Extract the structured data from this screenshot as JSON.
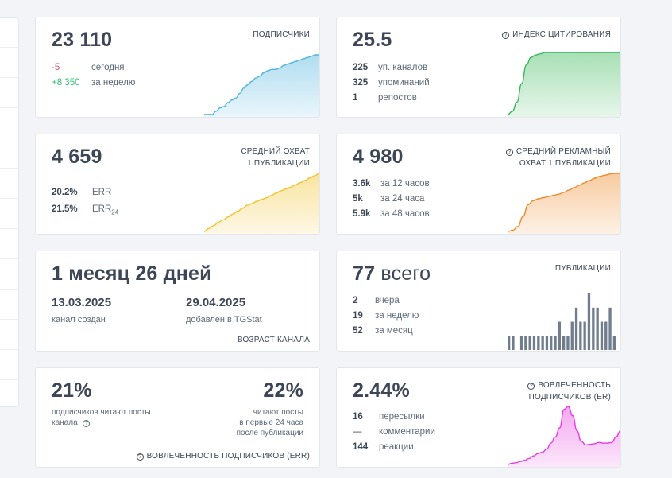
{
  "cards": {
    "subscribers": {
      "value": "23 110",
      "label": "ПОДПИСЧИКИ",
      "rows": [
        {
          "value": "-5",
          "text": "сегодня"
        },
        {
          "value": "+8 350",
          "text": "за неделю"
        }
      ]
    },
    "citation": {
      "value": "25.5",
      "label": "ИНДЕКС ЦИТИРОВАНИЯ",
      "rows": [
        {
          "value": "225",
          "text": "уп. каналов"
        },
        {
          "value": "325",
          "text": "упоминаний"
        },
        {
          "value": "1",
          "text": "репостов"
        }
      ]
    },
    "avg_reach": {
      "value": "4 659",
      "label_line1": "СРЕДНИЙ ОХВАТ",
      "label_line2": "1 ПУБЛИКАЦИИ",
      "rows": [
        {
          "value": "20.2%",
          "text": "ERR",
          "sub": ""
        },
        {
          "value": "21.5%",
          "text": "ERR",
          "sub": "24"
        }
      ]
    },
    "ad_reach": {
      "value": "4 980",
      "label_line1": "СРЕДНИЙ РЕКЛАМНЫЙ",
      "label_line2": "ОХВАТ 1 ПУБЛИКАЦИИ",
      "rows": [
        {
          "value": "3.6k",
          "text": "за 12 часов"
        },
        {
          "value": "5k",
          "text": "за 24 часа"
        },
        {
          "value": "5.9k",
          "text": "за 48 часов"
        }
      ]
    },
    "age": {
      "value": "1 месяц 26 дней",
      "created_date": "13.03.2025",
      "created_text": "канал создан",
      "added_date": "29.04.2025",
      "added_text": "добавлен в TGStat",
      "label": "ВОЗРАСТ КАНАЛА"
    },
    "posts": {
      "value": "77",
      "value_suffix": "всего",
      "label": "ПУБЛИКАЦИИ",
      "rows": [
        {
          "value": "2",
          "text": "вчера"
        },
        {
          "value": "19",
          "text": "за неделю"
        },
        {
          "value": "52",
          "text": "за месяц"
        }
      ]
    },
    "err": {
      "left_value": "21%",
      "left_text_line1": "подписчиков читают посты",
      "left_text_line2": "канала",
      "right_value": "22%",
      "right_text_line1": "читают посты",
      "right_text_line2": "в первые 24 часа",
      "right_text_line3": "после публикации",
      "label": "ВОВЛЕЧЕННОСТЬ ПОДПИСЧИКОВ (ERR)"
    },
    "er": {
      "value": "2.44%",
      "label_line1": "ВОВЛЕЧЕННОСТЬ",
      "label_line2": "ПОДПИСЧИКОВ (ER)",
      "rows": [
        {
          "value": "16",
          "text": "пересылки"
        },
        {
          "value": "—",
          "text": "комментарии"
        },
        {
          "value": "144",
          "text": "реакции"
        }
      ]
    }
  },
  "colors": {
    "subscribers": "#4fb3dd",
    "citation": "#3cb95a",
    "avg_reach": "#f2c22a",
    "ad_reach": "#ee8a2a",
    "posts": "#6f7d8c",
    "er": "#e83be0"
  },
  "chart_data": [
    {
      "type": "area",
      "name": "subscribers",
      "values": [
        0,
        0,
        0,
        5,
        10,
        12,
        18,
        22,
        25,
        32,
        40,
        45,
        50,
        55,
        58,
        63,
        66,
        68,
        68,
        70,
        74,
        76,
        78,
        80,
        82,
        84,
        86,
        88,
        90,
        90
      ]
    },
    {
      "type": "area",
      "name": "citation",
      "values": [
        0,
        5,
        20,
        50,
        80,
        92,
        96,
        98,
        100,
        100,
        100,
        100,
        100,
        100,
        100,
        100,
        100,
        100,
        100,
        100,
        100,
        100,
        100,
        100,
        100
      ]
    },
    {
      "type": "area",
      "name": "avg_reach",
      "values": [
        0,
        5,
        10,
        16,
        20,
        25,
        30,
        35,
        40,
        45,
        48,
        52,
        55,
        58,
        62,
        66,
        70,
        73,
        76,
        80,
        84,
        88,
        92,
        96,
        100
      ]
    },
    {
      "type": "area",
      "name": "ad_reach",
      "values": [
        0,
        2,
        8,
        25,
        45,
        52,
        55,
        57,
        59,
        61,
        63,
        66,
        70,
        74,
        78,
        82,
        86,
        90,
        93,
        95,
        97,
        98,
        98
      ]
    },
    {
      "type": "bar",
      "name": "posts",
      "values": [
        1,
        1,
        0,
        1,
        1,
        1,
        1,
        1,
        1,
        1,
        1,
        1,
        2,
        1,
        1,
        2,
        3,
        2,
        2,
        4,
        3,
        3,
        2,
        2,
        3,
        1
      ]
    },
    {
      "type": "area",
      "name": "er",
      "values": [
        0,
        2,
        3,
        5,
        7,
        10,
        14,
        18,
        20,
        25,
        35,
        45,
        60,
        90,
        95,
        80,
        55,
        38,
        32,
        33,
        34,
        36,
        35,
        35,
        36,
        45,
        55
      ]
    }
  ]
}
